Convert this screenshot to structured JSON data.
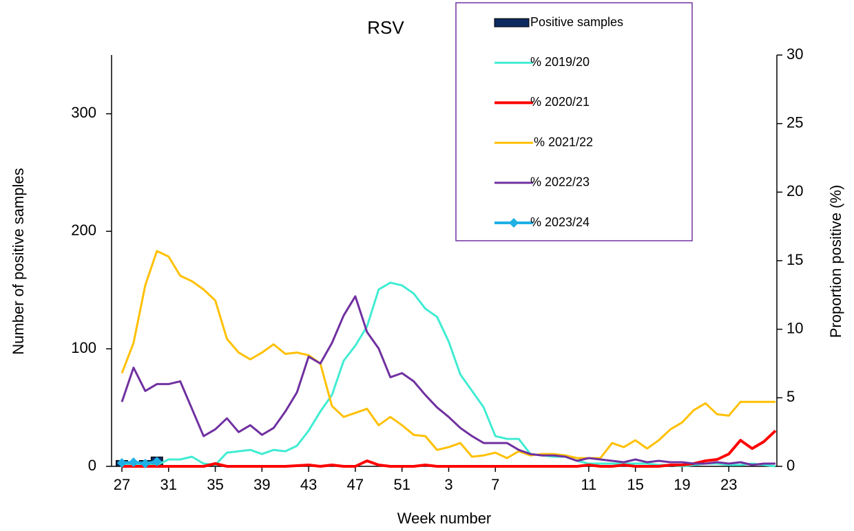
{
  "chart_data": {
    "type": "line",
    "title": "RSV",
    "x_label": "Week number",
    "y_label": "Number of positive samples",
    "y2_label": "Proportion positive (%)",
    "categories": [
      "27",
      null,
      null,
      null,
      "31",
      null,
      null,
      null,
      "35",
      null,
      null,
      null,
      "39",
      null,
      null,
      null,
      "43",
      null,
      null,
      null,
      "47",
      null,
      null,
      null,
      "51",
      null,
      null,
      null,
      "3",
      null,
      null,
      null,
      "7",
      null,
      null,
      null,
      null,
      null,
      null,
      null,
      "11",
      null,
      null,
      null,
      "15",
      null,
      null,
      null,
      "19",
      null,
      null,
      null,
      "23",
      null,
      null,
      null,
      null
    ],
    "ylim": [
      0,
      350
    ],
    "yticks": [
      0,
      100,
      200,
      300
    ],
    "y2lim": [
      0,
      30
    ],
    "y2ticks": [
      0,
      5,
      10,
      15,
      20,
      25,
      30
    ],
    "legend": "top-right",
    "series": [
      {
        "name": "Positive samples",
        "type": "bar",
        "color": "#0d2a5e",
        "values": [
          5,
          4,
          5,
          8,
          null,
          null,
          null,
          null,
          null,
          null,
          null,
          null,
          null,
          null,
          null,
          null,
          null,
          null,
          null,
          null,
          null,
          null,
          null,
          null,
          null,
          null,
          null,
          null,
          null,
          null,
          null,
          null,
          null,
          null,
          null,
          null,
          null,
          null,
          null,
          null,
          null,
          null,
          null,
          null,
          null,
          null,
          null,
          null,
          null,
          null,
          null,
          null,
          null,
          null,
          null,
          null,
          null
        ]
      },
      {
        "name": "% 2019/20",
        "color": "#40ecd2",
        "axis": "y2",
        "values": [
          0.1,
          0.1,
          0.1,
          0.1,
          0.5,
          0.5,
          0.7,
          0.2,
          0.1,
          1.0,
          1.1,
          1.2,
          0.9,
          1.2,
          1.1,
          1.5,
          2.6,
          4.0,
          5.2,
          7.7,
          8.8,
          10.2,
          12.9,
          13.4,
          13.2,
          12.6,
          11.5,
          10.9,
          9.1,
          6.7,
          5.5,
          4.3,
          2.2,
          2.0,
          2.0,
          0.9,
          0.8,
          0.7,
          0.7,
          0.4,
          0.2,
          0.2,
          0.2,
          0.2,
          0.2,
          0.2,
          0.1,
          0.1,
          0.0,
          0.1,
          0.2,
          0.2,
          0.1,
          0.1,
          0.2,
          0.1,
          0.0
        ]
      },
      {
        "name": "% 2020/21",
        "color": "#ff0000",
        "axis": "y2",
        "values": [
          0,
          0,
          0,
          0,
          0,
          0,
          0,
          0,
          0.2,
          0,
          0,
          0,
          0,
          0,
          0,
          0.05,
          0.1,
          0,
          0.1,
          0,
          0,
          0.4,
          0.1,
          0,
          0,
          0,
          0.1,
          0,
          0,
          0,
          0,
          0,
          0,
          0,
          0,
          0,
          0,
          0,
          0,
          0,
          0.1,
          0,
          0,
          0.1,
          0,
          0,
          0,
          0.1,
          0.1,
          0.2,
          0.4,
          0.5,
          0.9,
          1.9,
          1.3,
          1.8,
          2.6
        ]
      },
      {
        "name": " % 2021/22",
        "color": "#ffc000",
        "axis": "y2",
        "values": [
          6.8,
          9.0,
          13.2,
          15.7,
          15.3,
          13.9,
          13.5,
          12.9,
          12.1,
          9.3,
          8.3,
          7.8,
          8.3,
          8.9,
          8.2,
          8.3,
          8.1,
          7.5,
          4.4,
          3.6,
          3.9,
          4.2,
          3.0,
          3.6,
          3.0,
          2.3,
          2.2,
          1.2,
          1.4,
          1.7,
          0.7,
          0.8,
          1.0,
          0.6,
          1.1,
          0.8,
          0.9,
          0.9,
          0.8,
          0.6,
          0.6,
          0.6,
          1.7,
          1.4,
          1.9,
          1.3,
          1.9,
          2.7,
          3.2,
          4.1,
          4.6,
          3.8,
          3.7,
          4.7,
          4.7,
          4.7,
          4.7
        ]
      },
      {
        "name": "% 2022/23",
        "color": "#7030a0",
        "axis": "y2",
        "values": [
          4.7,
          7.2,
          5.5,
          6.0,
          6.0,
          6.2,
          4.2,
          2.2,
          2.7,
          3.5,
          2.5,
          3.0,
          2.3,
          2.8,
          4.0,
          5.4,
          8.0,
          7.5,
          9.0,
          11.0,
          12.4,
          9.8,
          8.6,
          6.5,
          6.8,
          6.2,
          5.2,
          4.3,
          3.6,
          2.8,
          2.2,
          1.7,
          1.7,
          1.7,
          1.2,
          0.9,
          0.8,
          0.8,
          0.7,
          0.4,
          0.6,
          0.5,
          0.4,
          0.3,
          0.5,
          0.3,
          0.4,
          0.3,
          0.3,
          0.2,
          0.2,
          0.3,
          0.2,
          0.3,
          0.1,
          0.2,
          0.2
        ]
      },
      {
        "name": "% 2023/24",
        "color": "#1fb0e6",
        "axis": "y2",
        "marker": "diamond",
        "values": [
          0.25,
          0.3,
          0.2,
          0.35,
          null,
          null,
          null,
          null,
          null,
          null,
          null,
          null,
          null,
          null,
          null,
          null,
          null,
          null,
          null,
          null,
          null,
          null,
          null,
          null,
          null,
          null,
          null,
          null,
          null,
          null,
          null,
          null,
          null,
          null,
          null,
          null,
          null,
          null,
          null,
          null,
          null,
          null,
          null,
          null,
          null,
          null,
          null,
          null,
          null,
          null,
          null,
          null,
          null,
          null,
          null,
          null,
          null
        ]
      }
    ]
  }
}
